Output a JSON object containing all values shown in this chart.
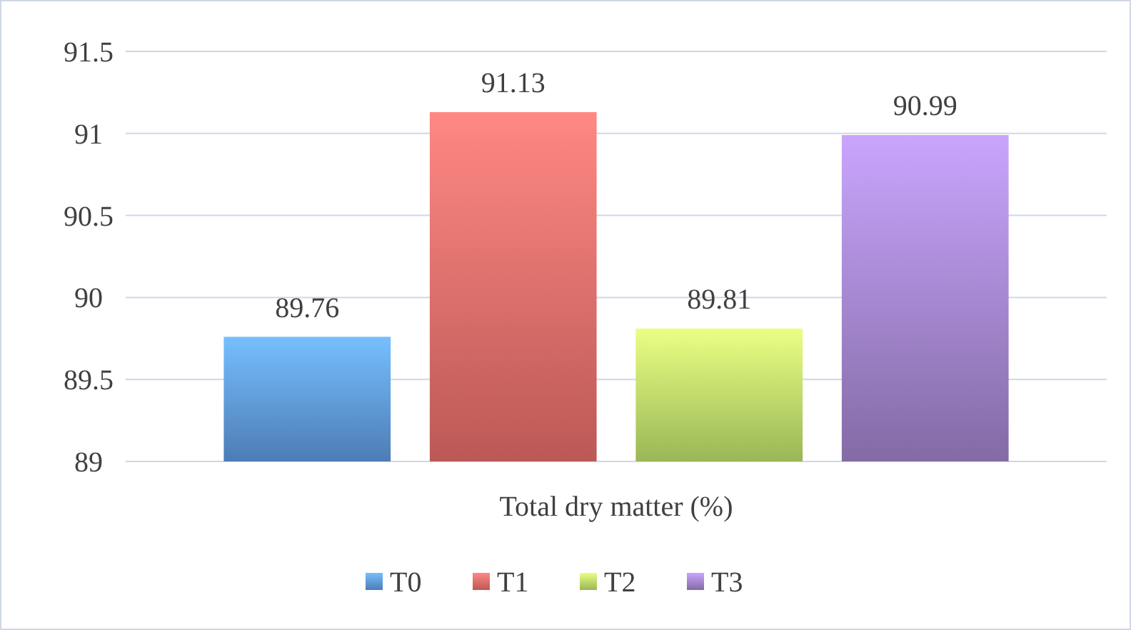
{
  "chart_data": {
    "type": "bar",
    "categories": [
      "Total dry matter (%)"
    ],
    "series": [
      {
        "name": "T0",
        "color": "#5f9ae0",
        "values": [
          89.76
        ]
      },
      {
        "name": "T1",
        "color": "#e86e6a",
        "values": [
          91.13
        ]
      },
      {
        "name": "T2",
        "color": "#bde36a",
        "values": [
          89.81
        ]
      },
      {
        "name": "T3",
        "color": "#a285cc",
        "values": [
          90.99
        ]
      }
    ],
    "ylim": [
      89,
      91.5
    ],
    "yticks": [
      89,
      89.5,
      90,
      90.5,
      91,
      91.5
    ],
    "grid": "y",
    "legend": "bottom",
    "data_labels": true
  }
}
